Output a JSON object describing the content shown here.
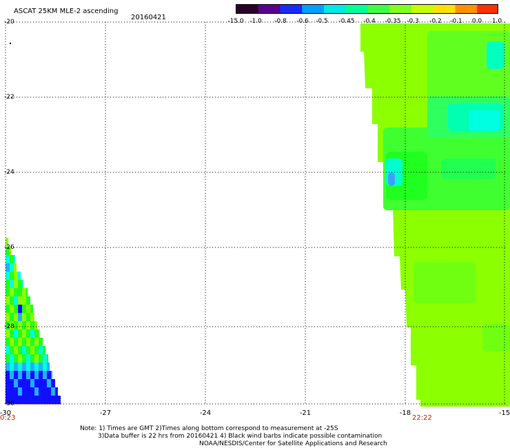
{
  "header": {
    "title": "ASCAT 25KM MLE-2 ascending",
    "date": "20160421"
  },
  "colorbar": {
    "labels": [
      "-15.0",
      "-1.0",
      "-0.8",
      "-0.6",
      "-0.5",
      "-0.45",
      "-0.4",
      "-0.35",
      "-0.3",
      "-0.2",
      "-0.1",
      "0.0",
      "1.0"
    ],
    "colors": [
      "#2a0028",
      "#5a0090",
      "#1a2aff",
      "#00a0ff",
      "#00e8e8",
      "#00ff9a",
      "#40ff40",
      "#80ff20",
      "#c8ff00",
      "#ffe000",
      "#ff9000",
      "#ff3000"
    ]
  },
  "axes": {
    "lat_labels": [
      "-20",
      "-22",
      "-24",
      "-26",
      "-28",
      "-30"
    ],
    "lon_labels": [
      "-30",
      "-27",
      "-24",
      "-21",
      "-18",
      "-15"
    ]
  },
  "times": {
    "left": "0:23",
    "right": "22:22"
  },
  "notes": [
    "Note: 1) Times are GMT 2)Times along bottom correspond to measurement at -25S",
    "3)Data buffer is 22 hrs from 20160421 4) Black wind barbs indicate possible contamination",
    "NOAA/NESDIS/Center for Satellite Applications and Research"
  ],
  "palette": {
    "green": "#8cff00",
    "bright_green": "#20ff20",
    "cyan": "#00ffe0",
    "blue": "#1010ff",
    "light_blue": "#20b0ff"
  }
}
